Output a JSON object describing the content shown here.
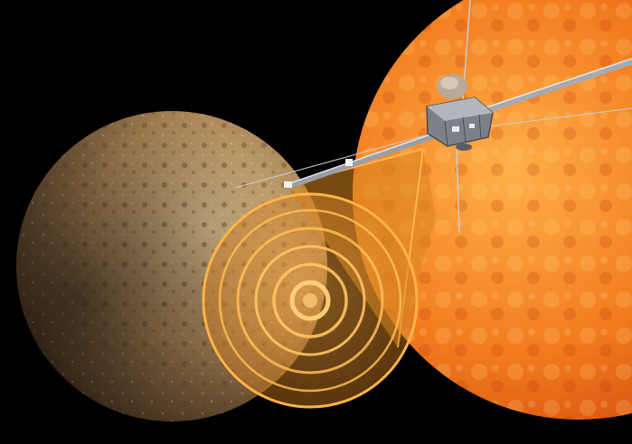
{
  "scene": {
    "subjects": [
      "planet",
      "sun",
      "spacecraft",
      "signal-beam"
    ],
    "colors": {
      "space": "#000000",
      "planet_light": "#c9a877",
      "planet_dark": "#3d2c1c",
      "sun_core": "#ff9a2e",
      "sun_edge": "#d8480c",
      "beam": "#f2a13a",
      "ring": "#ffb347",
      "spacecraft_body": "#8a8d93"
    }
  }
}
